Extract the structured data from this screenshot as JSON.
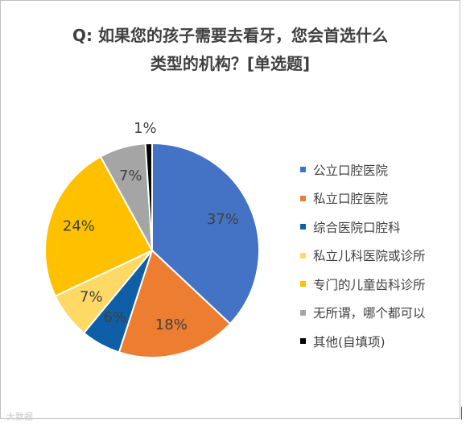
{
  "chart_data": {
    "type": "pie",
    "title_line1": "Q: 如果您的孩子需要去看牙，您会首选什么",
    "title_line2": "类型的机构？[单选题]",
    "legend_position": "right",
    "slices": [
      {
        "label": "公立口腔医院",
        "value": 37,
        "display": "37%",
        "color": "#4472C4"
      },
      {
        "label": "私立口腔医院",
        "value": 18,
        "display": "18%",
        "color": "#ED7D31"
      },
      {
        "label": "综合医院口腔科",
        "value": 6,
        "display": "6%",
        "color": "#0F5FA8"
      },
      {
        "label": "私立儿科医院或诊所",
        "value": 7,
        "display": "7%",
        "color": "#FFD966"
      },
      {
        "label": "专门的儿童齿科诊所",
        "value": 24,
        "display": "24%",
        "color": "#FFC000"
      },
      {
        "label": "无所谓，哪个都可以",
        "value": 7,
        "display": "7%",
        "color": "#A5A5A5"
      },
      {
        "label": "其他(自填项)",
        "value": 1,
        "display": "1%",
        "color": "#000000"
      }
    ]
  },
  "watermark": "大数据"
}
